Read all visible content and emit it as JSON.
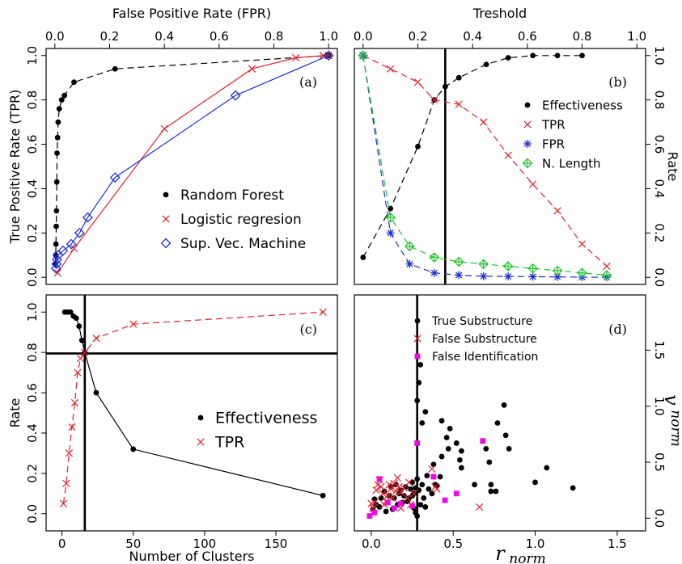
{
  "chart_data": [
    {
      "panel": "a",
      "type": "line",
      "tag": "(a)",
      "xlabel_top": "False Positive Rate (FPR)",
      "ylabel": "True Positive Rate (TPR)",
      "xlim": [
        0,
        1
      ],
      "ylim": [
        0,
        1
      ],
      "x_ticks": [
        0.0,
        0.2,
        0.4,
        0.6,
        0.8,
        1.0
      ],
      "x_tick_labels": [
        "0.0",
        "0.2",
        "0.4",
        "0.6",
        "0.8",
        "1.0"
      ],
      "y_ticks": [
        0.0,
        0.2,
        0.4,
        0.6,
        0.8,
        1.0
      ],
      "y_tick_labels": [
        "0.0",
        "0.2",
        "0.4",
        "0.6",
        "0.8",
        "1.0"
      ],
      "legend_position": "bottom-right",
      "series": [
        {
          "name": "Random Forest",
          "marker": "dot",
          "color": "#000000",
          "dash": "8,5",
          "points": [
            [
              0.002,
              0.06
            ],
            [
              0.003,
              0.1
            ],
            [
              0.004,
              0.15
            ],
            [
              0.005,
              0.23
            ],
            [
              0.006,
              0.3
            ],
            [
              0.007,
              0.43
            ],
            [
              0.008,
              0.56
            ],
            [
              0.01,
              0.63
            ],
            [
              0.012,
              0.7
            ],
            [
              0.016,
              0.76
            ],
            [
              0.025,
              0.8
            ],
            [
              0.035,
              0.82
            ],
            [
              0.07,
              0.88
            ],
            [
              0.22,
              0.94
            ],
            [
              1.0,
              1.0
            ]
          ]
        },
        {
          "name": "Logistic regresion",
          "marker": "x",
          "color": "#e8202a",
          "dash": "",
          "points": [
            [
              0.01,
              0.02
            ],
            [
              0.07,
              0.13
            ],
            [
              0.4,
              0.67
            ],
            [
              0.72,
              0.94
            ],
            [
              0.88,
              0.99
            ],
            [
              0.98,
              1.0
            ],
            [
              1.0,
              1.0
            ]
          ]
        },
        {
          "name": "Sup. Vec. Machine",
          "marker": "diamond",
          "color": "#1c2fd6",
          "dash": "",
          "points": [
            [
              0.004,
              0.04
            ],
            [
              0.006,
              0.06
            ],
            [
              0.008,
              0.08
            ],
            [
              0.012,
              0.1
            ],
            [
              0.03,
              0.12
            ],
            [
              0.06,
              0.15
            ],
            [
              0.09,
              0.2
            ],
            [
              0.12,
              0.27
            ],
            [
              0.22,
              0.45
            ],
            [
              0.66,
              0.82
            ],
            [
              1.0,
              1.0
            ]
          ]
        }
      ]
    },
    {
      "panel": "b",
      "type": "line",
      "tag": "(b)",
      "xlabel_top": "Treshold",
      "ylabel_right": "Rate",
      "xlim": [
        0,
        1
      ],
      "ylim": [
        0,
        1
      ],
      "x_ticks": [
        0.0,
        0.2,
        0.4,
        0.6,
        0.8,
        1.0
      ],
      "x_tick_labels": [
        "0.0",
        "0.2",
        "0.4",
        "0.6",
        "0.8",
        "1.0"
      ],
      "y_ticks": [
        0.0,
        0.2,
        0.4,
        0.6,
        0.8,
        1.0
      ],
      "y_tick_labels": [
        "0.0",
        "0.2",
        "0.4",
        "0.6",
        "0.8",
        "1.0"
      ],
      "vline": 0.3,
      "legend_position": "right",
      "series": [
        {
          "name": "Effectiveness",
          "marker": "dot",
          "color": "#000000",
          "dash": "8,5",
          "points": [
            [
              0.0,
              0.09
            ],
            [
              0.1,
              0.31
            ],
            [
              0.2,
              0.59
            ],
            [
              0.26,
              0.8
            ],
            [
              0.3,
              0.86
            ],
            [
              0.35,
              0.9
            ],
            [
              0.45,
              0.96
            ],
            [
              0.53,
              0.99
            ],
            [
              0.62,
              1.0
            ],
            [
              0.71,
              1.0
            ],
            [
              0.8,
              1.0
            ]
          ]
        },
        {
          "name": "TPR",
          "marker": "x",
          "color": "#e8202a",
          "dash": "8,5",
          "points": [
            [
              0.0,
              1.0
            ],
            [
              0.1,
              0.94
            ],
            [
              0.2,
              0.88
            ],
            [
              0.26,
              0.8
            ],
            [
              0.35,
              0.78
            ],
            [
              0.44,
              0.7
            ],
            [
              0.53,
              0.55
            ],
            [
              0.62,
              0.42
            ],
            [
              0.71,
              0.3
            ],
            [
              0.8,
              0.15
            ],
            [
              0.89,
              0.05
            ]
          ]
        },
        {
          "name": "FPR",
          "marker": "star",
          "color": "#1c2fd6",
          "dash": "8,5",
          "points": [
            [
              0.0,
              1.0
            ],
            [
              0.1,
              0.2
            ],
            [
              0.17,
              0.06
            ],
            [
              0.26,
              0.02
            ],
            [
              0.35,
              0.01
            ],
            [
              0.44,
              0.005
            ],
            [
              0.53,
              0.004
            ],
            [
              0.62,
              0.003
            ],
            [
              0.71,
              0.002
            ],
            [
              0.8,
              0.001
            ],
            [
              0.89,
              0.0
            ]
          ]
        },
        {
          "name": "N. Length",
          "marker": "crossdiamond",
          "color": "#22c42c",
          "dash": "8,5",
          "points": [
            [
              0.0,
              1.0
            ],
            [
              0.1,
              0.27
            ],
            [
              0.17,
              0.14
            ],
            [
              0.26,
              0.09
            ],
            [
              0.35,
              0.07
            ],
            [
              0.44,
              0.06
            ],
            [
              0.53,
              0.05
            ],
            [
              0.62,
              0.04
            ],
            [
              0.71,
              0.03
            ],
            [
              0.8,
              0.02
            ],
            [
              0.89,
              0.01
            ]
          ]
        }
      ]
    },
    {
      "panel": "c",
      "type": "line",
      "tag": "(c)",
      "xlabel": "Number of Clusters",
      "ylabel": "Rate",
      "xlim": [
        -5,
        187
      ],
      "ylim": [
        -0.05,
        1.05
      ],
      "x_ticks": [
        0,
        50,
        100,
        150
      ],
      "x_tick_labels": [
        "0",
        "50",
        "100",
        "150"
      ],
      "y_ticks": [
        0.0,
        0.2,
        0.4,
        0.6,
        0.8,
        1.0
      ],
      "y_tick_labels": [
        "0.0",
        "0.2",
        "0.4",
        "0.6",
        "0.8",
        "1.0"
      ],
      "vline": 16,
      "hline": 0.795,
      "legend_position": "center-right",
      "series": [
        {
          "name": "Effectiveness",
          "marker": "dot",
          "color": "#000000",
          "dash": "",
          "points": [
            [
              2,
              1.0
            ],
            [
              4,
              1.0
            ],
            [
              6,
              1.0
            ],
            [
              8,
              0.98
            ],
            [
              10,
              0.97
            ],
            [
              12,
              0.93
            ],
            [
              14,
              0.86
            ],
            [
              16,
              0.8
            ],
            [
              24,
              0.6
            ],
            [
              50,
              0.32
            ],
            [
              183,
              0.09
            ]
          ]
        },
        {
          "name": "TPR",
          "marker": "x",
          "color": "#e8202a",
          "dash": "8,5",
          "points": [
            [
              1,
              0.05
            ],
            [
              3,
              0.15
            ],
            [
              5,
              0.3
            ],
            [
              7,
              0.43
            ],
            [
              9,
              0.55
            ],
            [
              11,
              0.7
            ],
            [
              13,
              0.77
            ],
            [
              16,
              0.8
            ],
            [
              24,
              0.87
            ],
            [
              50,
              0.94
            ],
            [
              183,
              1.0
            ]
          ]
        }
      ]
    },
    {
      "panel": "d",
      "type": "scatter",
      "tag": "(d)",
      "xlabel_math": "r",
      "xlabel_sub": "norm",
      "ylabel_math": "v",
      "ylabel_sub": "norm",
      "xlim": [
        -0.05,
        1.62
      ],
      "ylim": [
        -0.05,
        1.93
      ],
      "x_ticks": [
        0.0,
        0.5,
        1.0,
        1.5
      ],
      "x_tick_labels": [
        "0.0",
        "0.5",
        "1.0",
        "1.5"
      ],
      "y_ticks": [
        0.0,
        0.5,
        1.0,
        1.5
      ],
      "y_tick_labels": [
        "0.0",
        "0.5",
        "1.0",
        "1.5"
      ],
      "vline": 0.28,
      "legend_position": "top-right",
      "series": [
        {
          "name": "True Substructure",
          "marker": "dot",
          "color": "#000000",
          "points": [
            [
              0.3,
              1.37
            ],
            [
              0.29,
              1.21
            ],
            [
              0.28,
              1.05
            ],
            [
              0.33,
              0.95
            ],
            [
              0.31,
              0.85
            ],
            [
              0.43,
              0.87
            ],
            [
              0.48,
              0.8
            ],
            [
              0.46,
              0.72
            ],
            [
              0.47,
              0.62
            ],
            [
              0.52,
              0.67
            ],
            [
              0.55,
              0.6
            ],
            [
              0.54,
              0.52
            ],
            [
              0.55,
              0.45
            ],
            [
              0.43,
              0.55
            ],
            [
              0.38,
              0.48
            ],
            [
              0.42,
              0.37
            ],
            [
              0.39,
              0.3
            ],
            [
              0.34,
              0.38
            ],
            [
              0.81,
              1.01
            ],
            [
              0.77,
              0.85
            ],
            [
              0.82,
              0.74
            ],
            [
              0.84,
              0.62
            ],
            [
              0.7,
              0.62
            ],
            [
              0.72,
              0.5
            ],
            [
              0.73,
              0.3
            ],
            [
              0.73,
              0.24
            ],
            [
              0.76,
              0.24
            ],
            [
              1.07,
              0.45
            ],
            [
              1.0,
              0.32
            ],
            [
              1.23,
              0.27
            ],
            [
              0.63,
              0.3
            ],
            [
              0.29,
              0.25
            ],
            [
              0.27,
              0.27
            ],
            [
              0.26,
              0.22
            ],
            [
              0.25,
              0.2
            ],
            [
              0.24,
              0.26
            ],
            [
              0.23,
              0.18
            ],
            [
              0.22,
              0.15
            ],
            [
              0.21,
              0.28
            ],
            [
              0.2,
              0.2
            ],
            [
              0.19,
              0.14
            ],
            [
              0.18,
              0.25
            ],
            [
              0.17,
              0.22
            ],
            [
              0.16,
              0.12
            ],
            [
              0.15,
              0.3
            ],
            [
              0.14,
              0.18
            ],
            [
              0.13,
              0.08
            ],
            [
              0.12,
              0.28
            ],
            [
              0.11,
              0.2
            ],
            [
              0.1,
              0.14
            ],
            [
              0.09,
              0.06
            ],
            [
              0.08,
              0.24
            ],
            [
              0.06,
              0.18
            ],
            [
              0.05,
              0.1
            ],
            [
              0.03,
              0.12
            ],
            [
              0.02,
              0.17
            ],
            [
              0.01,
              0.08
            ],
            [
              0.27,
              0.05
            ],
            [
              0.28,
              0.02
            ],
            [
              0.26,
              0.09
            ],
            [
              0.3,
              0.12
            ],
            [
              0.32,
              0.18
            ],
            [
              0.35,
              0.26
            ],
            [
              0.37,
              0.22
            ],
            [
              0.4,
              0.29
            ],
            [
              0.33,
              0.1
            ],
            [
              0.25,
              0.32
            ],
            [
              0.28,
              0.35
            ],
            [
              0.31,
              0.3
            ]
          ]
        },
        {
          "name": "False Substructure",
          "marker": "x",
          "color": "#e8202a",
          "points": [
            [
              0.37,
              0.44
            ],
            [
              0.39,
              0.28
            ],
            [
              0.4,
              0.26
            ],
            [
              0.66,
              0.1
            ],
            [
              0.18,
              0.23
            ],
            [
              0.16,
              0.36
            ],
            [
              0.14,
              0.31
            ],
            [
              0.12,
              0.26
            ],
            [
              0.1,
              0.2
            ],
            [
              0.09,
              0.15
            ],
            [
              0.08,
              0.12
            ],
            [
              0.07,
              0.22
            ],
            [
              0.06,
              0.28
            ],
            [
              0.05,
              0.34
            ],
            [
              0.04,
              0.3
            ],
            [
              0.03,
              0.25
            ],
            [
              0.02,
              0.14
            ],
            [
              0.01,
              0.09
            ],
            [
              0.0,
              0.13
            ],
            [
              0.15,
              0.24
            ],
            [
              0.13,
              0.18
            ],
            [
              0.11,
              0.3
            ],
            [
              0.22,
              0.18
            ],
            [
              0.24,
              0.12
            ],
            [
              0.2,
              0.27
            ],
            [
              0.18,
              0.09
            ],
            [
              0.26,
              0.22
            ],
            [
              0.23,
              0.32
            ],
            [
              0.17,
              0.28
            ]
          ]
        },
        {
          "name": "False Identification",
          "marker": "square",
          "color": "#f007e6",
          "points": [
            [
              0.28,
              0.67
            ],
            [
              0.68,
              0.69
            ],
            [
              0.38,
              0.37
            ],
            [
              0.52,
              0.22
            ],
            [
              0.45,
              0.16
            ],
            [
              0.18,
              0.13
            ],
            [
              0.1,
              0.14
            ],
            [
              0.05,
              0.35
            ],
            [
              0.02,
              0.05
            ],
            [
              -0.01,
              0.02
            ],
            [
              0.14,
              0.09
            ],
            [
              0.25,
              0.11
            ]
          ]
        }
      ]
    }
  ]
}
